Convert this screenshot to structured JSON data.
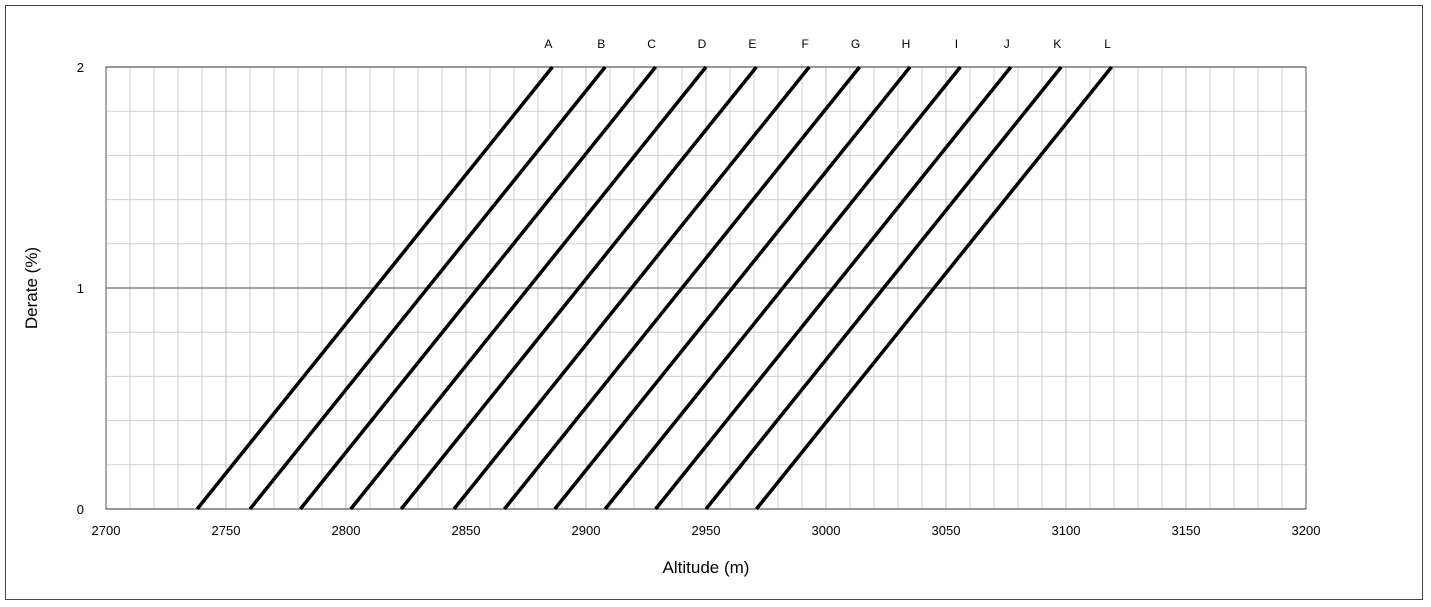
{
  "chart_data": {
    "type": "line",
    "title": "",
    "xlabel": "Altitude (m)",
    "ylabel": "Derate (%)",
    "xlim": [
      2700,
      3200
    ],
    "ylim": [
      0,
      2
    ],
    "x_ticks": [
      2700,
      2750,
      2800,
      2850,
      2900,
      2950,
      3000,
      3050,
      3100,
      3150,
      3200
    ],
    "x_minor_step": 10,
    "y_ticks": [
      0,
      1,
      2
    ],
    "y_minor_step": 0.2,
    "grid": true,
    "line_color": "#000000",
    "series": [
      {
        "name": "A",
        "x": [
          2738,
          2886
        ],
        "y": [
          0,
          2
        ]
      },
      {
        "name": "B",
        "x": [
          2760,
          2908
        ],
        "y": [
          0,
          2
        ]
      },
      {
        "name": "C",
        "x": [
          2781,
          2929
        ],
        "y": [
          0,
          2
        ]
      },
      {
        "name": "D",
        "x": [
          2802,
          2950
        ],
        "y": [
          0,
          2
        ]
      },
      {
        "name": "E",
        "x": [
          2823,
          2971
        ],
        "y": [
          0,
          2
        ]
      },
      {
        "name": "F",
        "x": [
          2845,
          2993
        ],
        "y": [
          0,
          2
        ]
      },
      {
        "name": "G",
        "x": [
          2866,
          3014
        ],
        "y": [
          0,
          2
        ]
      },
      {
        "name": "H",
        "x": [
          2887,
          3035
        ],
        "y": [
          0,
          2
        ]
      },
      {
        "name": "I",
        "x": [
          2908,
          3056
        ],
        "y": [
          0,
          2
        ]
      },
      {
        "name": "J",
        "x": [
          2929,
          3077
        ],
        "y": [
          0,
          2
        ]
      },
      {
        "name": "K",
        "x": [
          2950,
          3098
        ],
        "y": [
          0,
          2
        ]
      },
      {
        "name": "L",
        "x": [
          2971,
          3119
        ],
        "y": [
          0,
          2
        ]
      }
    ]
  }
}
